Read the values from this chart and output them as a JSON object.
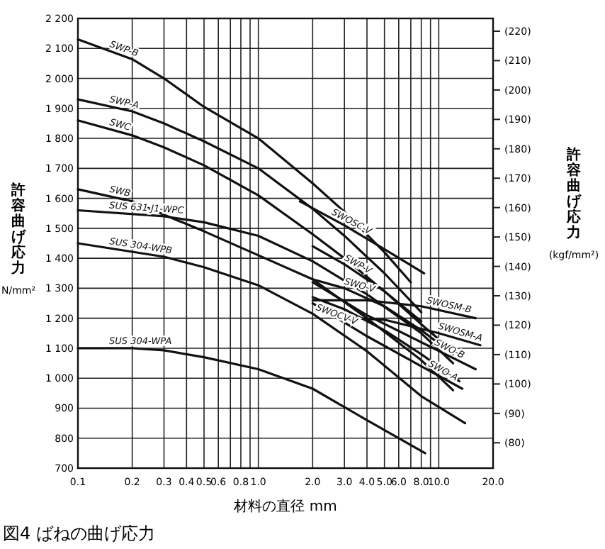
{
  "chart_data": {
    "type": "line",
    "title": "図4 ばねの曲げ応力",
    "xlabel": "材料の直径 mm",
    "ylabel": "許容曲げ応力 N/mm²",
    "y2label": "許容曲げ応力 (kgf/mm²)",
    "log": "x",
    "grid": true,
    "legend": false,
    "marker": "none",
    "line_style": "solid",
    "xlim": [
      0.1,
      20
    ],
    "xticks": [
      0.1,
      0.2,
      0.3,
      0.4,
      0.5,
      0.6,
      {
        "value": 0.7,
        "label": null
      },
      0.8,
      {
        "value": 0.9,
        "label": null
      },
      {
        "value": 1,
        "label": "1.0"
      },
      {
        "value": 2,
        "label": "2.0"
      },
      {
        "value": 3,
        "label": "3.0"
      },
      {
        "value": 4,
        "label": "4.0"
      },
      {
        "value": 5,
        "label": "5.0"
      },
      {
        "value": 6,
        "label": "6.0"
      },
      {
        "value": 7,
        "label": null
      },
      {
        "value": 8,
        "label": "8.0"
      },
      {
        "value": 9,
        "label": null
      },
      {
        "value": 10,
        "label": "10.0"
      },
      {
        "value": 20,
        "label": "20.0"
      }
    ],
    "ylim": [
      700,
      2200
    ],
    "yticks": [
      {
        "value": 700,
        "label": "700"
      },
      {
        "value": 800,
        "label": "800"
      },
      {
        "value": 900,
        "label": "900"
      },
      {
        "value": 1000,
        "label": "1 000"
      },
      {
        "value": 1100,
        "label": "1 100"
      },
      {
        "value": 1200,
        "label": "1 200"
      },
      {
        "value": 1300,
        "label": "1 300"
      },
      {
        "value": 1400,
        "label": "1 400"
      },
      {
        "value": 1500,
        "label": "1 500"
      },
      {
        "value": 1600,
        "label": "1 600"
      },
      {
        "value": 1700,
        "label": "1 700"
      },
      {
        "value": 1800,
        "label": "1 800"
      },
      {
        "value": 1900,
        "label": "1 900"
      },
      {
        "value": 2000,
        "label": "2 000"
      },
      {
        "value": 2100,
        "label": "2 100"
      },
      {
        "value": 2200,
        "label": "2 200"
      }
    ],
    "y2lim": [
      71.38,
      224.34
    ],
    "y2ticks": [
      {
        "value": 80,
        "label": "(80)"
      },
      {
        "value": 90,
        "label": "(90)"
      },
      {
        "value": 100,
        "label": "(100)"
      },
      {
        "value": 110,
        "label": "(110)"
      },
      {
        "value": 120,
        "label": "(120)"
      },
      {
        "value": 130,
        "label": "(130)"
      },
      {
        "value": 140,
        "label": "(140)"
      },
      {
        "value": 150,
        "label": "(150)"
      },
      {
        "value": 160,
        "label": "(160)"
      },
      {
        "value": 170,
        "label": "(170)"
      },
      {
        "value": 180,
        "label": "(180)"
      },
      {
        "value": 190,
        "label": "(190)"
      },
      {
        "value": 200,
        "label": "(200)"
      },
      {
        "value": 210,
        "label": "(210)"
      },
      {
        "value": 220,
        "label": "(220)"
      }
    ],
    "series": [
      {
        "name": "SWP-B",
        "color": "#111111",
        "x": [
          0.1,
          0.2,
          0.3,
          0.5,
          1,
          2,
          3,
          5,
          7
        ],
        "values": [
          2130,
          2064,
          2000,
          1905,
          1800,
          1650,
          1555,
          1420,
          1320
        ]
      },
      {
        "name": "SWP-A",
        "color": "#111111",
        "x": [
          0.1,
          0.2,
          0.3,
          0.5,
          1,
          2,
          3,
          5,
          8
        ],
        "values": [
          1930,
          1890,
          1850,
          1790,
          1700,
          1565,
          1475,
          1350,
          1220
        ]
      },
      {
        "name": "SWC",
        "color": "#111111",
        "x": [
          0.1,
          0.2,
          0.3,
          0.5,
          1,
          2,
          3,
          5,
          8,
          10
        ],
        "values": [
          1860,
          1810,
          1770,
          1710,
          1610,
          1480,
          1400,
          1290,
          1180,
          1130
        ]
      },
      {
        "name": "SWB",
        "color": "#111111",
        "x": [
          0.1,
          0.2,
          0.3,
          0.5,
          1,
          2,
          4,
          8,
          12
        ],
        "values": [
          1630,
          1590,
          1545,
          1490,
          1410,
          1330,
          1200,
          1060,
          960
        ]
      },
      {
        "name": "SUS 631 J1-WPC",
        "color": "#111111",
        "x": [
          0.1,
          0.3,
          0.5,
          1,
          2,
          4,
          8,
          12
        ],
        "values": [
          1560,
          1540,
          1520,
          1475,
          1390,
          1280,
          1150,
          1050
        ]
      },
      {
        "name": "SUS 304-WPB",
        "color": "#111111",
        "x": [
          0.1,
          0.3,
          0.5,
          1,
          2,
          4,
          8,
          14
        ],
        "values": [
          1450,
          1405,
          1370,
          1310,
          1215,
          1090,
          940,
          850
        ]
      },
      {
        "name": "SUS 304-WPA",
        "color": "#111111",
        "x": [
          0.1,
          0.2,
          0.3,
          0.5,
          1,
          2,
          4,
          8.4
        ],
        "values": [
          1100,
          1100,
          1093,
          1070,
          1030,
          965,
          860,
          750
        ]
      },
      {
        "name": "SWP-V",
        "color": "#111111",
        "x": [
          2,
          3,
          5,
          8
        ],
        "values": [
          1440,
          1380,
          1290,
          1190
        ]
      },
      {
        "name": "SWO-V",
        "color": "#111111",
        "x": [
          2,
          3,
          5,
          8,
          12
        ],
        "values": [
          1330,
          1300,
          1240,
          1160,
          1080
        ]
      },
      {
        "name": "SWOCV-V",
        "color": "#111111",
        "x": [
          2,
          3,
          5,
          8,
          13
        ],
        "values": [
          1270,
          1230,
          1160,
          1080,
          990
        ]
      },
      {
        "name": "SWOSC-V",
        "color": "#111111",
        "x": [
          1.7,
          3,
          5,
          8.3
        ],
        "values": [
          1590,
          1510,
          1430,
          1350
        ]
      },
      {
        "name": "SWOSM-B",
        "color": "#111111",
        "x": [
          2,
          4,
          8,
          16
        ],
        "values": [
          1260,
          1260,
          1240,
          1200
        ]
      },
      {
        "name": "SWOSM-A",
        "color": "#111111",
        "x": [
          3.5,
          5,
          10,
          17
        ],
        "values": [
          1200,
          1195,
          1150,
          1110
        ]
      },
      {
        "name": "SWO-B",
        "color": "#111111",
        "x": [
          2,
          4,
          8,
          16
        ],
        "values": [
          1320,
          1210,
          1120,
          1030
        ]
      },
      {
        "name": "SWO-A",
        "color": "#111111",
        "x": [
          2,
          4,
          8,
          13.5
        ],
        "values": [
          1250,
          1140,
          1040,
          965
        ]
      }
    ]
  }
}
